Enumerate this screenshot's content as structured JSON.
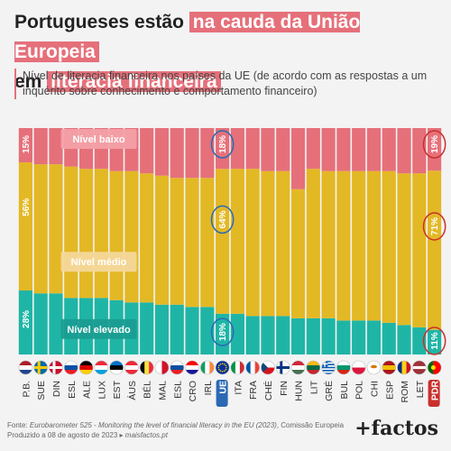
{
  "header": {
    "title_part1": "Portugueses estão",
    "title_part2": "na cauda da União Europeia",
    "title_part3": "em",
    "title_part4": "literacia financeira",
    "subtitle": "Nível de literacia financeira nos países da UE (de acordo com as respostas a um inquérito sobre conhecimento e comportamento financeiro)"
  },
  "footer": {
    "source_prefix": "Fonte: ",
    "source_italic": "Eurobarometer 525 - Monitoring the level of financial literacy in the EU (2023)",
    "source_suffix": ", Comissão Europeia",
    "produced": "Produzido a 08 de agosto de 2023",
    "site": "maisfactos.pt",
    "logo": "+factos"
  },
  "colors": {
    "low": "#e5707a",
    "medium": "#e3b825",
    "high": "#1fb5a6",
    "highlight_ue": "#2a6ab3",
    "highlight_pdr": "#c9302c",
    "band_label_bg": "#f4d79a"
  },
  "chart_data": {
    "type": "bar",
    "stacked": true,
    "normalized": true,
    "categories": [
      "P.B.",
      "SUE",
      "DIN",
      "ESL",
      "ALE",
      "LUX",
      "EST",
      "ÁUS",
      "BÉL",
      "MAL",
      "ESL",
      "CRO",
      "IRL",
      "UE",
      "ITA",
      "FRA",
      "CHÉ",
      "FIN",
      "HUN",
      "LIT",
      "GRÉ",
      "BUL",
      "POL",
      "CHI",
      "ESP",
      "ROM",
      "LET",
      "PDR"
    ],
    "flags": [
      "nl",
      "se",
      "dk",
      "si",
      "de",
      "lu",
      "ee",
      "at",
      "be",
      "mt",
      "sk",
      "hr",
      "ie",
      "eu",
      "it",
      "fr",
      "cz",
      "fi",
      "hu",
      "lt",
      "gr",
      "bg",
      "pl",
      "cy",
      "es",
      "ro",
      "lv",
      "pt"
    ],
    "series": [
      {
        "name": "Nível elevado",
        "values": [
          28,
          27,
          27,
          25,
          25,
          25,
          24,
          23,
          23,
          22,
          22,
          21,
          21,
          18,
          18,
          17,
          17,
          17,
          16,
          16,
          16,
          15,
          15,
          15,
          14,
          13,
          12,
          11
        ]
      },
      {
        "name": "Nível médio",
        "values": [
          56,
          57,
          57,
          58,
          57,
          57,
          57,
          58,
          57,
          57,
          56,
          57,
          57,
          64,
          64,
          65,
          64,
          64,
          57,
          66,
          65,
          66,
          66,
          66,
          67,
          67,
          68,
          71
        ]
      },
      {
        "name": "Nível baixo",
        "values": [
          15,
          16,
          16,
          17,
          18,
          18,
          19,
          19,
          20,
          21,
          22,
          22,
          22,
          18,
          18,
          18,
          19,
          19,
          27,
          18,
          19,
          19,
          19,
          19,
          19,
          20,
          20,
          19
        ]
      }
    ],
    "data_labels": [
      {
        "category_index": 0,
        "series": "Nível baixo",
        "text": "15%"
      },
      {
        "category_index": 0,
        "series": "Nível médio",
        "text": "56%"
      },
      {
        "category_index": 0,
        "series": "Nível elevado",
        "text": "28%"
      },
      {
        "category_index": 13,
        "series": "Nível baixo",
        "text": "18%"
      },
      {
        "category_index": 13,
        "series": "Nível médio",
        "text": "64%"
      },
      {
        "category_index": 13,
        "series": "Nível elevado",
        "text": "18%"
      },
      {
        "category_index": 27,
        "series": "Nível baixo",
        "text": "19%"
      },
      {
        "category_index": 27,
        "series": "Nível médio",
        "text": "71%"
      },
      {
        "category_index": 27,
        "series": "Nível elevado",
        "text": "11%"
      }
    ],
    "highlighted_categories": [
      "UE",
      "PDR"
    ],
    "ylim": [
      0,
      100
    ]
  }
}
